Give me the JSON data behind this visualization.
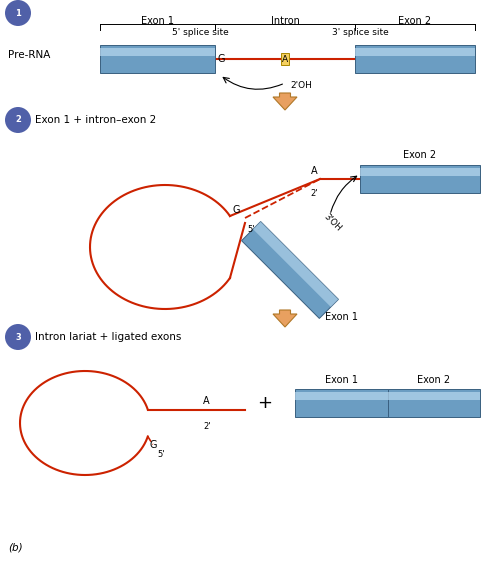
{
  "background_color": "#ffffff",
  "exon_color": "#6b9dc2",
  "exon_color_light": "#b8d8ef",
  "intron_color": "#cc2200",
  "arrow_color": "#e8a060",
  "arrow_edge_color": "#b07828",
  "circle_color": "#5060a8",
  "step1": {
    "label": "Pre-RNA",
    "exon1_label": "Exon 1",
    "intron_label": "Intron",
    "exon2_label": "Exon 2",
    "splice5_label": "5' splice site",
    "splice3_label": "3' splice site",
    "G_label": "G",
    "A_label": "A",
    "twoOH_label": "2'OH"
  },
  "step2": {
    "label": "Exon 1 + intron–exon 2",
    "exon2_label": "Exon 2",
    "exon1_label": "Exon 1",
    "A_label": "A",
    "two_label": "2'",
    "G_label": "G",
    "five_label": "5'",
    "threeOH_label": "3'OH"
  },
  "step3": {
    "label": "Intron lariat + ligated exons",
    "exon1_label": "Exon 1",
    "exon2_label": "Exon 2",
    "A_label": "A",
    "two_label": "2'",
    "G_label": "G",
    "five_label": "5'",
    "plus_label": "+"
  },
  "footnote": "(b)"
}
